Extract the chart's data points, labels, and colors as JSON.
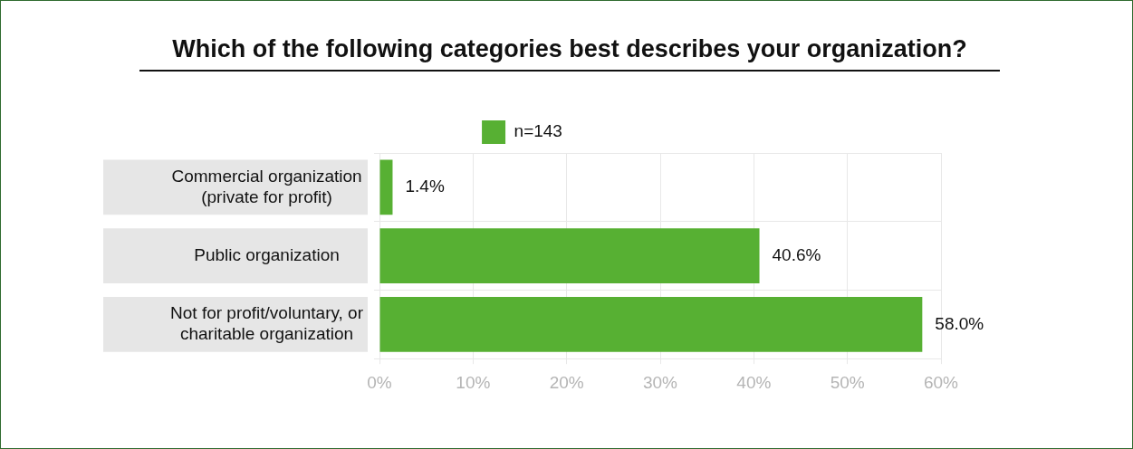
{
  "chart_data": {
    "type": "bar",
    "orientation": "horizontal",
    "title": "Which of the following categories best describes your organization?",
    "categories": [
      "Commercial organization (private for profit)",
      "Public organization",
      "Not for profit/voluntary, or charitable organization"
    ],
    "series": [
      {
        "name": "n=143",
        "color": "#57b033",
        "values": [
          1.4,
          40.6,
          58.0
        ],
        "value_labels": [
          "1.4%",
          "40.6%",
          "58.0%"
        ]
      }
    ],
    "xlim": [
      0,
      60
    ],
    "xticks": [
      {
        "value": 0,
        "label": "0%"
      },
      {
        "value": 10,
        "label": "10%"
      },
      {
        "value": 20,
        "label": "20%"
      },
      {
        "value": 30,
        "label": "30%"
      },
      {
        "value": 40,
        "label": "40%"
      },
      {
        "value": 50,
        "label": "50%"
      },
      {
        "value": 60,
        "label": "60%"
      }
    ],
    "grid": true,
    "legend": "top"
  }
}
